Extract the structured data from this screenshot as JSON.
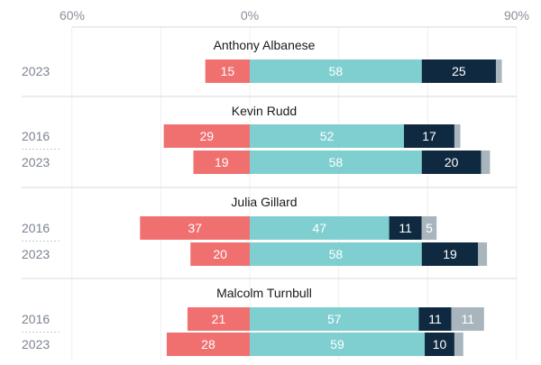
{
  "chart_data": {
    "type": "bar",
    "stacked": "diverging",
    "axis": {
      "ticks": [
        "60%",
        "0%",
        "90%"
      ],
      "range": [
        -60,
        90
      ]
    },
    "colors": [
      "#f07070",
      "#7fcfd0",
      "#0f2940",
      "#a8b5bd"
    ],
    "grid": true,
    "groups": [
      {
        "leader": "Anthony Albanese",
        "rows": [
          {
            "year": "2023",
            "values": [
              15,
              58,
              25,
              2
            ]
          }
        ]
      },
      {
        "leader": "Kevin Rudd",
        "rows": [
          {
            "year": "2016",
            "values": [
              29,
              52,
              17,
              2
            ]
          },
          {
            "year": "2023",
            "values": [
              19,
              58,
              20,
              3
            ]
          }
        ]
      },
      {
        "leader": "Julia Gillard",
        "rows": [
          {
            "year": "2016",
            "values": [
              37,
              47,
              11,
              5
            ]
          },
          {
            "year": "2023",
            "values": [
              20,
              58,
              19,
              3
            ]
          }
        ]
      },
      {
        "leader": "Malcolm Turnbull",
        "rows": [
          {
            "year": "2016",
            "values": [
              21,
              57,
              11,
              11
            ]
          },
          {
            "year": "2023",
            "values": [
              28,
              59,
              10,
              3
            ]
          }
        ]
      }
    ]
  }
}
